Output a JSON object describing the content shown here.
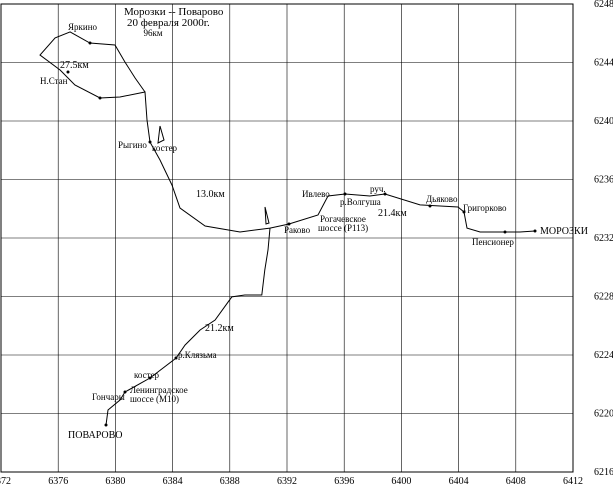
{
  "chart_data": {
    "type": "line",
    "title": "Морозки -- Поварово",
    "subtitle": "20 февраля 2000г.",
    "annotations": [
      "96км",
      "Яркино",
      "Н.Стан",
      "27.5км",
      "Рыгино",
      "костер",
      "13.0км",
      "Раково",
      "Ивлево",
      "Рогачевское",
      "шоссе (Р113)",
      "р.Волгуша",
      "руч.",
      "21.4км",
      "Дьяково",
      "Григорково",
      "Пенсионер",
      "МОРОЗКИ",
      "21.2км",
      "р.Клязьма",
      "костер",
      "Ленинградское",
      "шоссе (М10)",
      "Гончары",
      "ПОВАРОВО"
    ],
    "xlim": [
      6372,
      6412
    ],
    "ylim": [
      6216,
      6248
    ],
    "xticks": [
      6372,
      6376,
      6380,
      6384,
      6388,
      6392,
      6396,
      6400,
      6404,
      6408,
      6412
    ],
    "yticks": [
      6216,
      6220,
      6224,
      6228,
      6232,
      6236,
      6240,
      6244,
      6248
    ],
    "grid": true,
    "color": "#000000",
    "series": [
      {
        "x": [
          6409.34,
          6408.29,
          6405.5,
          6404.59,
          6404.38,
          6403.96,
          6401.3,
          6398.85,
          6397.8,
          6396.06,
          6394.87,
          6394.17,
          6392.14,
          6390.81
        ],
        "y": [
          6232.48,
          6232.41,
          6232.41,
          6232.68,
          6233.78,
          6234.12,
          6234.26,
          6235.01,
          6234.87,
          6235.01,
          6234.87,
          6233.57,
          6232.96,
          6232.68
        ]
      },
      {
        "x": [
          6390.81,
          6388.71,
          6386.27,
          6384.52,
          6383.96,
          6383.12,
          6382.42,
          6382.21,
          6382.07,
          6380.32,
          6378.92,
          6377.17,
          6376.13,
          6374.73,
          6375.78,
          6376.83,
          6378.22,
          6379.97,
          6380.67,
          6381.38,
          6382.07
        ],
        "y": [
          6232.68,
          6232.41,
          6232.82,
          6234.05,
          6235.62,
          6237.33,
          6238.56,
          6240.07,
          6241.98,
          6241.64,
          6241.57,
          6242.46,
          6243.49,
          6244.51,
          6245.68,
          6246.09,
          6245.33,
          6245.2,
          6244.03,
          6242.94,
          6241.98
        ]
      },
      {
        "x": [
          6390.81,
          6390.67,
          6390.45,
          6390.24,
          6389.05,
          6388.14,
          6386.97,
          6385.92,
          6384.87,
          6384.24,
          6382.42,
          6380.67,
          6380.32,
          6379.48,
          6379.34
        ],
        "y": [
          6232.68,
          6231.18,
          6229.81,
          6228.1,
          6228.1,
          6227.97,
          6226.39,
          6225.71,
          6224.68,
          6223.79,
          6222.43,
          6221.47,
          6220.92,
          6220.24,
          6219.21
        ]
      }
    ]
  }
}
